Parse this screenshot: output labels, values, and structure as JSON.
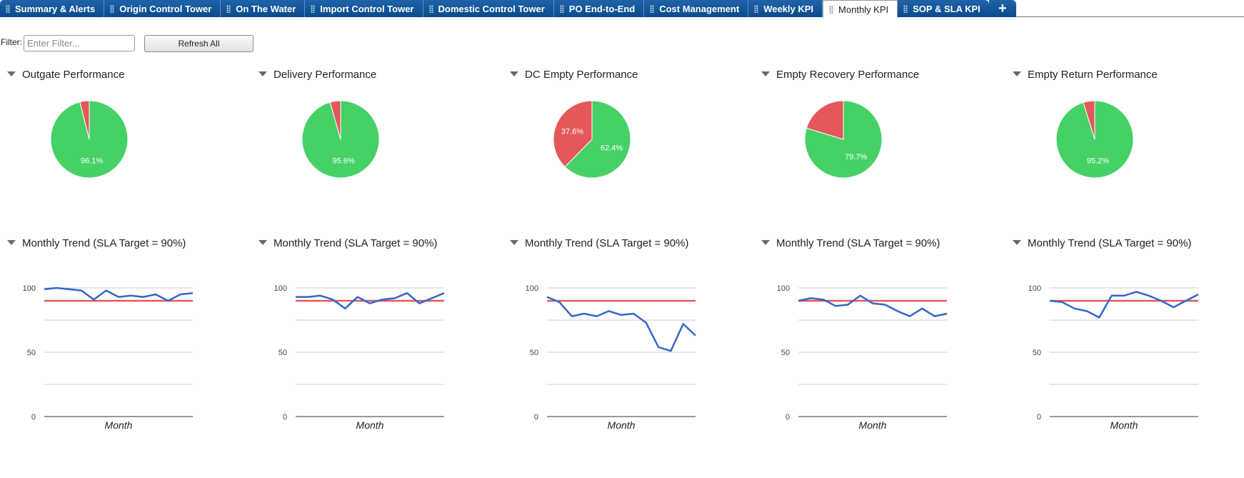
{
  "tabs": [
    {
      "label": "Summary & Alerts",
      "active": false
    },
    {
      "label": "Origin Control Tower",
      "active": false
    },
    {
      "label": "On The Water",
      "active": false
    },
    {
      "label": "Import Control Tower",
      "active": false
    },
    {
      "label": "Domestic Control Tower",
      "active": false
    },
    {
      "label": "PO End-to-End",
      "active": false
    },
    {
      "label": "Cost Management",
      "active": false
    },
    {
      "label": "Weekly KPI",
      "active": false
    },
    {
      "label": "Monthly KPI",
      "active": true
    },
    {
      "label": "SOP & SLA KPI",
      "active": false
    }
  ],
  "add_tab_icon": "plus-icon",
  "filter": {
    "label": "Filter:",
    "placeholder": "Enter Filter...",
    "value": ""
  },
  "refresh_label": "Refresh All",
  "colors": {
    "on_time": "#46d167",
    "late": "#e4585a",
    "trend": "#3366cc",
    "target": "#e4585a"
  },
  "pies": [
    {
      "title": "Outgate Performance",
      "chart_data": {
        "type": "pie",
        "values": [
          96.1,
          3.9
        ],
        "labels": [
          "96.1%",
          ""
        ]
      }
    },
    {
      "title": "Delivery Performance",
      "chart_data": {
        "type": "pie",
        "values": [
          95.6,
          4.4
        ],
        "labels": [
          "95.6%",
          ""
        ]
      }
    },
    {
      "title": "DC Empty Performance",
      "chart_data": {
        "type": "pie",
        "values": [
          62.4,
          37.6
        ],
        "labels": [
          "62.4%",
          "37.6%"
        ]
      }
    },
    {
      "title": "Empty Recovery Performance",
      "chart_data": {
        "type": "pie",
        "values": [
          79.7,
          20.3
        ],
        "labels": [
          "79.7%",
          ""
        ]
      }
    },
    {
      "title": "Empty Return Performance",
      "chart_data": {
        "type": "pie",
        "values": [
          95.2,
          4.8
        ],
        "labels": [
          "95.2%",
          ""
        ]
      }
    }
  ],
  "trends": [
    {
      "title": "Monthly Trend (SLA Target = 90%)",
      "chart_data": {
        "type": "line",
        "xlabel": "Month",
        "ylim": [
          0,
          100
        ],
        "yticks": [
          "0",
          "50",
          "100"
        ],
        "target": 90,
        "values": [
          99,
          100,
          99,
          98,
          91,
          98,
          93,
          94,
          93,
          95,
          90,
          95,
          96
        ]
      }
    },
    {
      "title": "Monthly Trend (SLA Target = 90%)",
      "chart_data": {
        "type": "line",
        "xlabel": "Month",
        "ylim": [
          0,
          100
        ],
        "yticks": [
          "0",
          "50",
          "100"
        ],
        "target": 90,
        "values": [
          93,
          93,
          94,
          91,
          84,
          93,
          88,
          91,
          92,
          96,
          88,
          92,
          96
        ]
      }
    },
    {
      "title": "Monthly Trend (SLA Target = 90%)",
      "chart_data": {
        "type": "line",
        "xlabel": "Month",
        "ylim": [
          0,
          100
        ],
        "yticks": [
          "0",
          "50",
          "100"
        ],
        "target": 90,
        "values": [
          93,
          89,
          78,
          80,
          78,
          82,
          79,
          80,
          73,
          54,
          51,
          72,
          63
        ]
      }
    },
    {
      "title": "Monthly Trend (SLA Target = 90%)",
      "chart_data": {
        "type": "line",
        "xlabel": "Month",
        "ylim": [
          0,
          100
        ],
        "yticks": [
          "0",
          "50",
          "100"
        ],
        "target": 90,
        "values": [
          90,
          92,
          91,
          86,
          87,
          94,
          88,
          87,
          82,
          78,
          84,
          78,
          80
        ]
      }
    },
    {
      "title": "Monthly Trend (SLA Target = 90%)",
      "chart_data": {
        "type": "line",
        "xlabel": "Month",
        "ylim": [
          0,
          100
        ],
        "yticks": [
          "0",
          "50",
          "100"
        ],
        "target": 90,
        "values": [
          90,
          89,
          84,
          82,
          77,
          94,
          94,
          97,
          94,
          90,
          85,
          90,
          95
        ]
      }
    }
  ]
}
